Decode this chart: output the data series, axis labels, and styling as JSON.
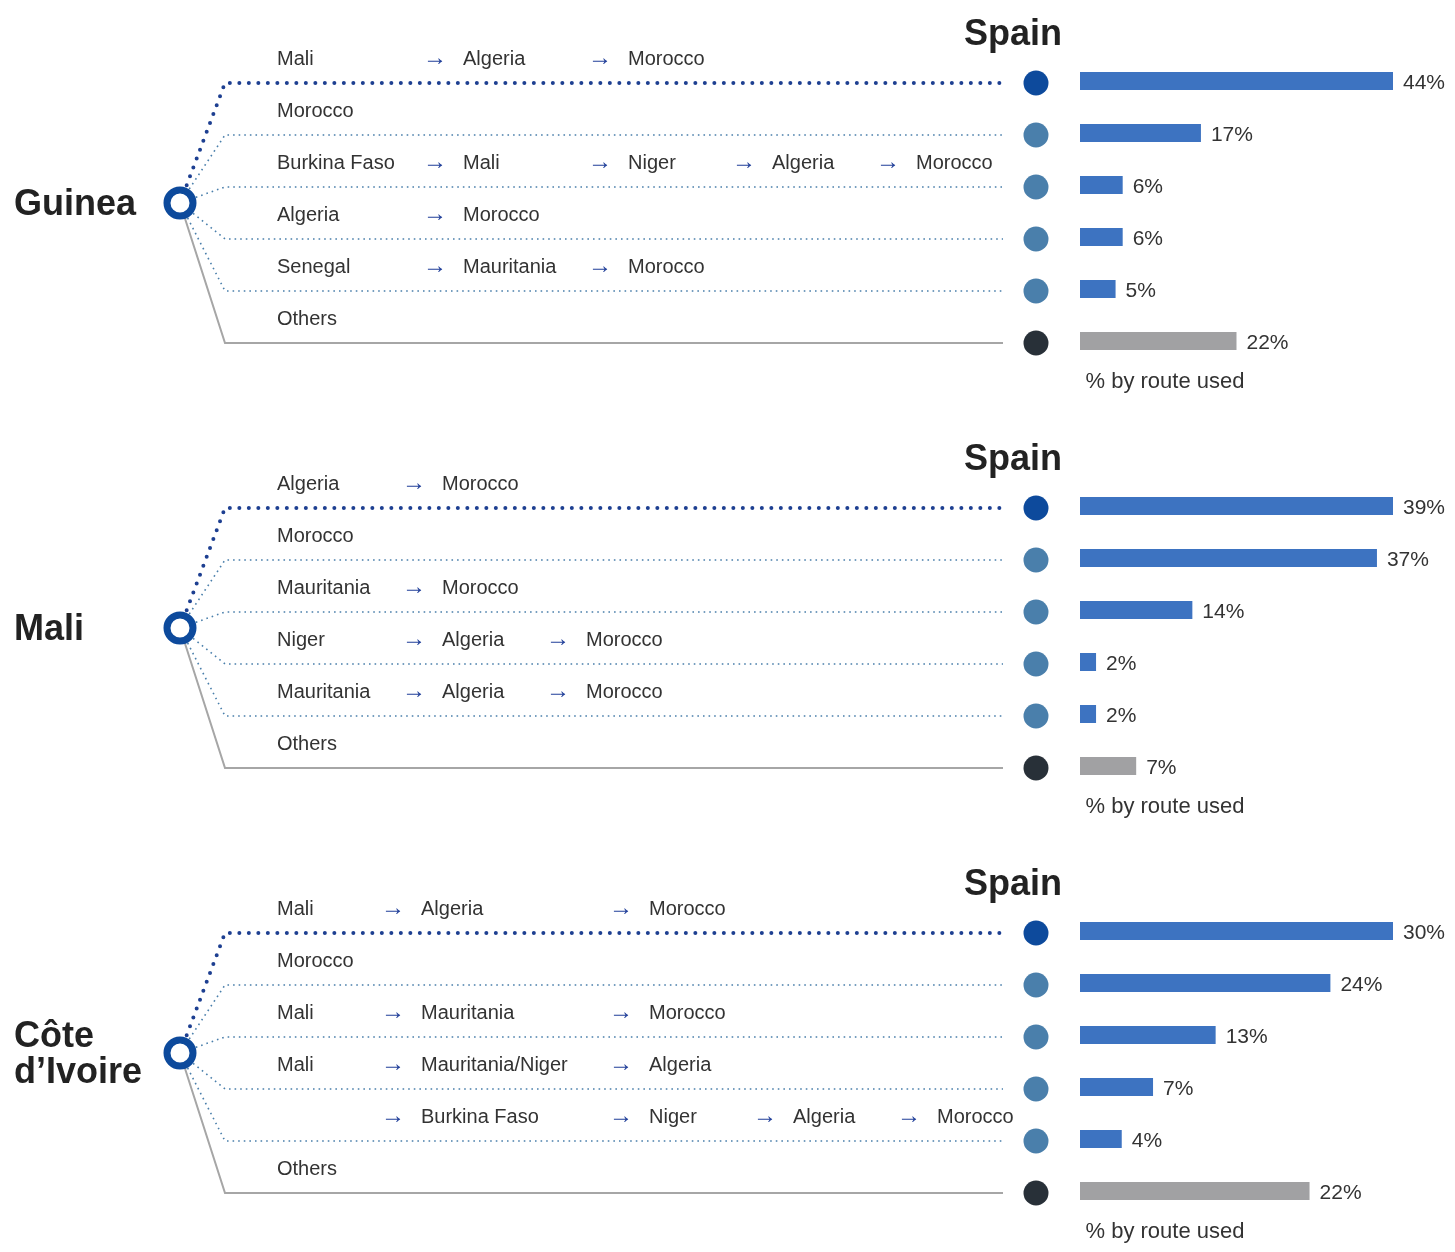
{
  "chart_data": [
    {
      "type": "bar",
      "orientation": "horizontal",
      "title": "Guinea",
      "annotations": [
        "Spain"
      ],
      "xlabel": "% by route used",
      "categories": [
        "Mali → Algeria → Morocco",
        "Morocco",
        "Burkina Faso → Mali → Niger → Algeria → Morocco",
        "Algeria → Morocco",
        "Senegal → Mauritania → Morocco",
        "Others"
      ],
      "values": [
        44,
        17,
        6,
        6,
        5,
        22
      ],
      "value_labels": [
        "44%",
        "17%",
        "6%",
        "6%",
        "5%",
        "22%"
      ],
      "colors": [
        "#3d73c1",
        "#3d73c1",
        "#3d73c1",
        "#3d73c1",
        "#3d73c1",
        "#a1a1a3"
      ]
    },
    {
      "type": "bar",
      "orientation": "horizontal",
      "title": "Mali",
      "annotations": [
        "Spain"
      ],
      "xlabel": "% by route used",
      "categories": [
        "Algeria → Morocco",
        "Morocco",
        "Mauritania → Morocco",
        "Niger → Algeria → Morocco",
        "Mauritania → Algeria → Morocco",
        "Others"
      ],
      "values": [
        39,
        37,
        14,
        2,
        2,
        7
      ],
      "value_labels": [
        "39%",
        "37%",
        "14%",
        "2%",
        "2%",
        "7%"
      ],
      "colors": [
        "#3d73c1",
        "#3d73c1",
        "#3d73c1",
        "#3d73c1",
        "#3d73c1",
        "#a1a1a3"
      ]
    },
    {
      "type": "bar",
      "orientation": "horizontal",
      "title": "Côte d’Ivoire",
      "annotations": [
        "Spain"
      ],
      "xlabel": "% by route used",
      "categories": [
        "Mali → Algeria → Morocco",
        "Morocco",
        "Mali → Mauritania → Morocco",
        "Mali → Mauritania/Niger → Algeria",
        "→ Burkina Faso → Niger → Algeria → Morocco",
        "Others"
      ],
      "values": [
        30,
        24,
        13,
        7,
        4,
        22
      ],
      "value_labels": [
        "30%",
        "24%",
        "13%",
        "7%",
        "4%",
        "22%"
      ],
      "colors": [
        "#3d73c1",
        "#3d73c1",
        "#3d73c1",
        "#3d73c1",
        "#3d73c1",
        "#a1a1a3"
      ]
    }
  ]
}
